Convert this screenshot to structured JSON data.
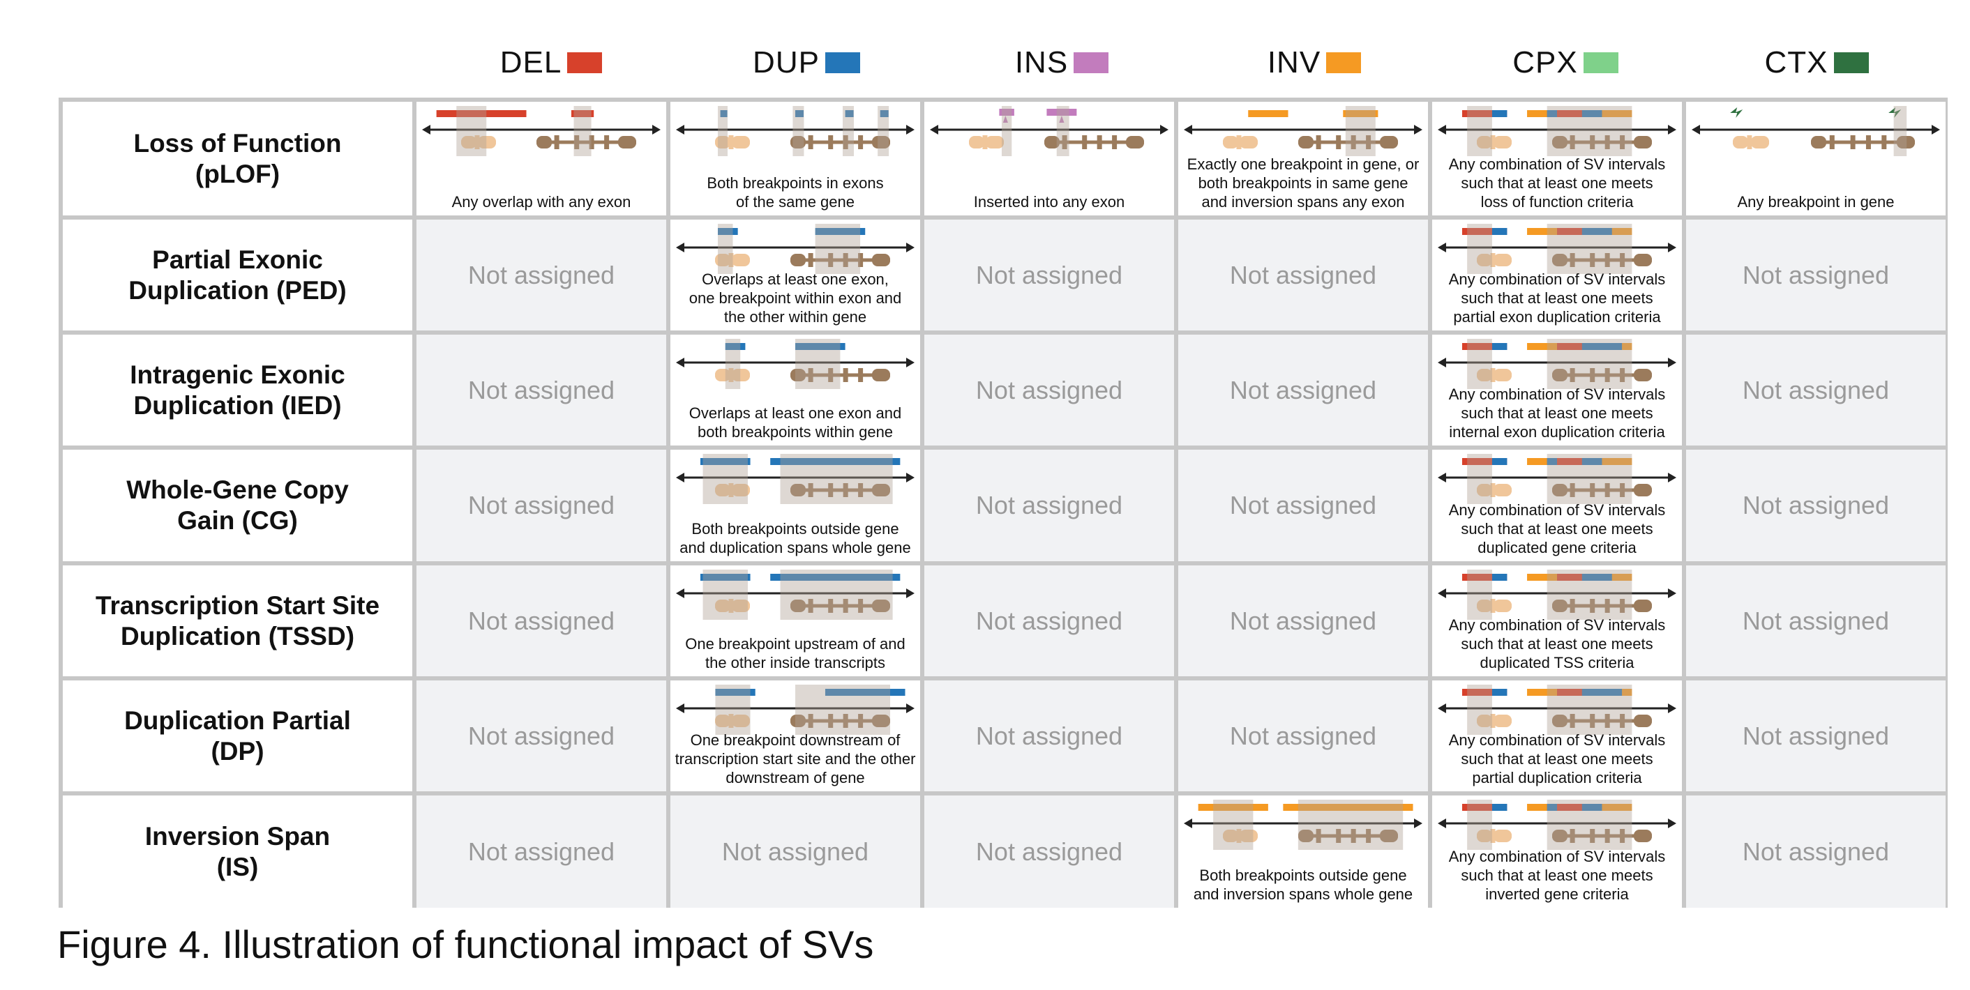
{
  "legend": [
    {
      "label": "DEL",
      "color": "#d7412b"
    },
    {
      "label": "DUP",
      "color": "#2476b8"
    },
    {
      "label": "INS",
      "color": "#c27cbd"
    },
    {
      "label": "INV",
      "color": "#f59a23"
    },
    {
      "label": "CPX",
      "color": "#7fd18a"
    },
    {
      "label": "CTX",
      "color": "#2f7140"
    }
  ],
  "not_assigned": "Not assigned",
  "rows": [
    {
      "label_lines": [
        "Loss of Function",
        "(pLOF)"
      ]
    },
    {
      "label_lines": [
        "Partial Exonic",
        "Duplication (PED)"
      ]
    },
    {
      "label_lines": [
        "Intragenic Exonic",
        "Duplication (IED)"
      ]
    },
    {
      "label_lines": [
        "Whole-Gene Copy",
        "Gain (CG)"
      ]
    },
    {
      "label_lines": [
        "Transcription Start Site",
        "Duplication (TSSD)"
      ]
    },
    {
      "label_lines": [
        "Duplication Partial",
        "(DP)"
      ]
    },
    {
      "label_lines": [
        "Inversion Span",
        "(IS)"
      ]
    }
  ],
  "cells": {
    "0-0": {
      "caption": [
        "Any overlap with any exon"
      ]
    },
    "0-1": {
      "caption": [
        "Both breakpoints in exons",
        "of the same gene"
      ]
    },
    "0-2": {
      "caption": [
        "Inserted into any exon"
      ]
    },
    "0-3": {
      "caption": [
        "Exactly one breakpoint in gene, or",
        "both breakpoints in same gene",
        "and inversion spans any exon"
      ]
    },
    "0-4": {
      "caption": [
        "Any combination of SV intervals",
        "such that at least one meets",
        "loss of function criteria"
      ]
    },
    "0-5": {
      "caption": [
        "Any breakpoint in gene"
      ]
    },
    "1-1": {
      "caption": [
        "Overlaps at least one exon,",
        "one breakpoint within exon and",
        "the other within gene"
      ]
    },
    "1-4": {
      "caption": [
        "Any combination of SV intervals",
        "such that at least one meets",
        "partial exon duplication criteria"
      ]
    },
    "2-1": {
      "caption": [
        "Overlaps at least one exon and",
        "both breakpoints within gene"
      ]
    },
    "2-4": {
      "caption": [
        "Any combination of SV intervals",
        "such that at least one meets",
        "internal exon duplication criteria"
      ]
    },
    "3-1": {
      "caption": [
        "Both breakpoints outside gene",
        "and duplication spans whole gene"
      ]
    },
    "3-4": {
      "caption": [
        "Any combination of SV intervals",
        "such that at least one meets",
        "duplicated gene criteria"
      ]
    },
    "4-1": {
      "caption": [
        "One breakpoint upstream of and",
        "the other inside transcripts"
      ]
    },
    "4-4": {
      "caption": [
        "Any combination of SV intervals",
        "such that at least one meets",
        "duplicated TSS criteria"
      ]
    },
    "5-1": {
      "caption": [
        "One breakpoint downstream of",
        "transcription start site and the other",
        "downstream of gene"
      ]
    },
    "5-4": {
      "caption": [
        "Any combination of SV intervals",
        "such that at least one meets",
        "partial duplication criteria"
      ]
    },
    "6-3": {
      "caption": [
        "Both breakpoints outside gene",
        "and inversion spans whole gene"
      ]
    },
    "6-4": {
      "caption": [
        "Any combination of SV intervals",
        "such that at least one meets",
        "inverted gene criteria"
      ]
    }
  },
  "figure_caption": "Figure 4. Illustration of functional impact of SVs"
}
